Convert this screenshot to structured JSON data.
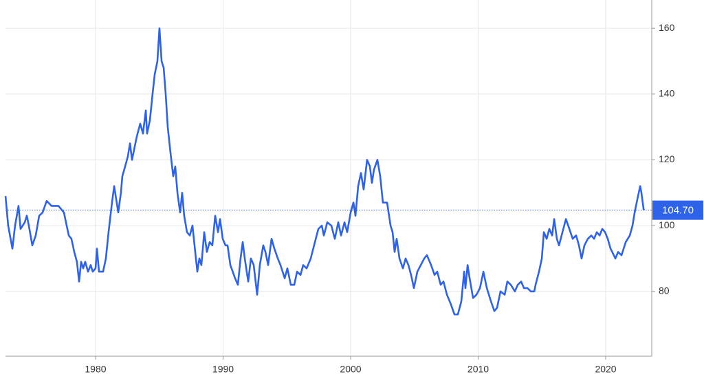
{
  "chart_data": {
    "type": "line",
    "x": [
      1972.94,
      1973.15,
      1973.48,
      1973.69,
      1973.96,
      1974.12,
      1974.45,
      1974.61,
      1974.77,
      1975.04,
      1975.31,
      1975.58,
      1975.85,
      1976.17,
      1976.55,
      1977.09,
      1977.52,
      1977.9,
      1978.11,
      1978.33,
      1978.54,
      1978.71,
      1978.87,
      1979.03,
      1979.19,
      1979.41,
      1979.62,
      1979.78,
      1980.0,
      1980.11,
      1980.27,
      1980.59,
      1980.81,
      1981.02,
      1981.29,
      1981.46,
      1981.78,
      1981.99,
      1982.1,
      1982.32,
      1982.53,
      1982.7,
      1982.86,
      1983.07,
      1983.23,
      1983.5,
      1983.72,
      1983.94,
      1984.04,
      1984.26,
      1984.47,
      1984.64,
      1984.85,
      1985.01,
      1985.18,
      1985.34,
      1985.5,
      1985.66,
      1985.88,
      1986.09,
      1986.25,
      1986.42,
      1986.63,
      1986.79,
      1986.95,
      1987.17,
      1987.39,
      1987.6,
      1987.87,
      1987.98,
      1988.14,
      1988.3,
      1988.52,
      1988.73,
      1988.95,
      1989.16,
      1989.38,
      1989.6,
      1989.76,
      1989.97,
      1990.19,
      1990.35,
      1990.57,
      1990.94,
      1991.16,
      1991.37,
      1991.54,
      1991.7,
      1991.97,
      1992.18,
      1992.4,
      1992.67,
      1992.88,
      1993.15,
      1993.32,
      1993.53,
      1993.8,
      1994.02,
      1994.29,
      1994.5,
      1994.83,
      1995.04,
      1995.31,
      1995.58,
      1995.8,
      1996.07,
      1996.28,
      1996.55,
      1996.87,
      1997.2,
      1997.47,
      1997.74,
      1997.9,
      1998.17,
      1998.49,
      1998.76,
      1999.03,
      1999.25,
      1999.52,
      1999.73,
      2000.0,
      2000.22,
      2000.38,
      2000.59,
      2000.81,
      2001.02,
      2001.29,
      2001.51,
      2001.67,
      2001.83,
      2002.1,
      2002.32,
      2002.53,
      2002.86,
      2003.13,
      2003.29,
      2003.45,
      2003.61,
      2003.83,
      2004.1,
      2004.31,
      2004.53,
      2004.74,
      2004.96,
      2005.23,
      2005.5,
      2005.77,
      2005.98,
      2006.31,
      2006.58,
      2006.79,
      2007.06,
      2007.28,
      2007.55,
      2007.87,
      2008.14,
      2008.41,
      2008.68,
      2008.9,
      2009.0,
      2009.17,
      2009.33,
      2009.6,
      2009.87,
      2010.14,
      2010.41,
      2010.68,
      2011.0,
      2011.27,
      2011.48,
      2011.75,
      2012.08,
      2012.29,
      2012.56,
      2012.88,
      2013.1,
      2013.37,
      2013.59,
      2013.86,
      2014.13,
      2014.4,
      2014.5,
      2014.77,
      2014.99,
      2015.15,
      2015.37,
      2015.58,
      2015.8,
      2015.96,
      2016.17,
      2016.34,
      2016.61,
      2016.88,
      2017.15,
      2017.41,
      2017.68,
      2017.9,
      2018.11,
      2018.33,
      2018.6,
      2018.87,
      2019.09,
      2019.3,
      2019.52,
      2019.73,
      2019.95,
      2020.16,
      2020.38,
      2020.76,
      2020.97,
      2021.24,
      2021.57,
      2021.89,
      2022.1,
      2022.27,
      2022.48,
      2022.7,
      2022.8,
      2022.97,
      2023.02
    ],
    "series": [
      {
        "color": "#2e62e8",
        "values": [
          109,
          100,
          93,
          100,
          106,
          99,
          101,
          103,
          100,
          94,
          97,
          103,
          104,
          107.5,
          106,
          106,
          104,
          97,
          96,
          92,
          89,
          83,
          89,
          87,
          89,
          86,
          88,
          86,
          87,
          93,
          86,
          86,
          90,
          98,
          107,
          112,
          104,
          110,
          115,
          118,
          121,
          125,
          120,
          124,
          127,
          131,
          128,
          135,
          128,
          132,
          140,
          146,
          150,
          160,
          150,
          148,
          140,
          130,
          122,
          115,
          118,
          110,
          104,
          110,
          103,
          98,
          97,
          100,
          90,
          86,
          90,
          88,
          98,
          92,
          95,
          94,
          103,
          98,
          102,
          96,
          94,
          94,
          88,
          84,
          82,
          90,
          95,
          90,
          83,
          90,
          88,
          79,
          88,
          94,
          92,
          88,
          96,
          93,
          90,
          88,
          84,
          87,
          82,
          82,
          86,
          85,
          88,
          87,
          90,
          95,
          99,
          100,
          97,
          101,
          100,
          96,
          101,
          97,
          101,
          98,
          104,
          107,
          103,
          112,
          116,
          111,
          120,
          118,
          113,
          117,
          120,
          115,
          107,
          107,
          100,
          98,
          92,
          96,
          90,
          87,
          90,
          88,
          85,
          81,
          86,
          88,
          90,
          91,
          88,
          85,
          86,
          82,
          83,
          79,
          76,
          73,
          73,
          77,
          86,
          81,
          88,
          84,
          78,
          79,
          81,
          86,
          81,
          77,
          74,
          75,
          80,
          79,
          83,
          82,
          80,
          82,
          83,
          81,
          81,
          80,
          80,
          82,
          86,
          90,
          98,
          96,
          99,
          97,
          102,
          96,
          94,
          98,
          102,
          99,
          96,
          97,
          94,
          90,
          94,
          96,
          97,
          96,
          98,
          97,
          99,
          98,
          96,
          93,
          90,
          92,
          91,
          95,
          97,
          100,
          104,
          108,
          112,
          110,
          105,
          104.7
        ]
      }
    ],
    "reference_line": {
      "value": 104.7,
      "label": "104.70"
    },
    "xlim": [
      1972.94,
      2023.61
    ],
    "xticks": [
      1980,
      1990,
      2000,
      2010,
      2020
    ],
    "ylim": [
      60.3,
      168.6
    ],
    "yticks": [
      80,
      100,
      120,
      140,
      160
    ],
    "grid": true
  }
}
